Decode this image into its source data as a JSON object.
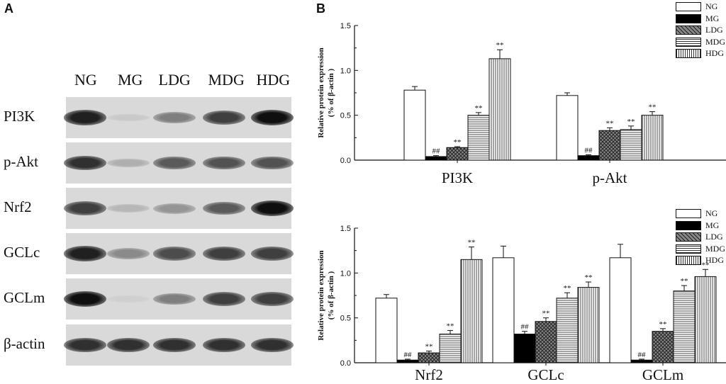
{
  "panel_a": {
    "letter": "A",
    "lanes": [
      "NG",
      "MG",
      "LDG",
      "MDG",
      "HDG"
    ],
    "rows": [
      {
        "label": "PI3K",
        "intensity": [
          0.95,
          0.15,
          0.6,
          0.85,
          1.0
        ]
      },
      {
        "label": "p-Akt",
        "intensity": [
          0.9,
          0.35,
          0.75,
          0.78,
          0.78
        ]
      },
      {
        "label": "Nrf2",
        "intensity": [
          0.85,
          0.3,
          0.5,
          0.75,
          1.0
        ]
      },
      {
        "label": "GCLc",
        "intensity": [
          0.95,
          0.55,
          0.8,
          0.85,
          0.85
        ]
      },
      {
        "label": "GCLm",
        "intensity": [
          1.0,
          0.08,
          0.6,
          0.85,
          0.85
        ]
      },
      {
        "label": "β-actin",
        "intensity": [
          0.9,
          0.9,
          0.9,
          0.9,
          0.9
        ]
      }
    ]
  },
  "panel_b": {
    "letter": "B"
  },
  "colors": {
    "NG": "#ffffff",
    "MG": "#000000",
    "bar_stroke": "#111111"
  },
  "chart_data": [
    {
      "type": "bar",
      "categories": [
        "PI3K",
        "p-Akt"
      ],
      "ylabel": "Relative protein expression (% of β-actin  )",
      "ylim": [
        0,
        1.5
      ],
      "yticks": [
        "0.0",
        "0.5",
        "1.0",
        "1.5"
      ],
      "legend_placement": "top-right",
      "series": [
        {
          "name": "NG",
          "pattern": "white",
          "values": [
            0.78,
            0.72
          ],
          "errors": [
            0.04,
            0.03
          ],
          "labels": [
            "",
            ""
          ]
        },
        {
          "name": "MG",
          "pattern": "black",
          "values": [
            0.04,
            0.05
          ],
          "errors": [
            0.01,
            0.01
          ],
          "labels": [
            "##",
            "##"
          ]
        },
        {
          "name": "LDG",
          "pattern": "crosshatch",
          "values": [
            0.14,
            0.33
          ],
          "errors": [
            0.01,
            0.03
          ],
          "labels": [
            "**",
            "**"
          ]
        },
        {
          "name": "MDG",
          "pattern": "horizontal",
          "values": [
            0.5,
            0.34
          ],
          "errors": [
            0.03,
            0.04
          ],
          "labels": [
            "**",
            "**"
          ]
        },
        {
          "name": "HDG",
          "pattern": "vertical",
          "values": [
            1.13,
            0.5
          ],
          "errors": [
            0.1,
            0.04
          ],
          "labels": [
            "**",
            "**"
          ]
        }
      ]
    },
    {
      "type": "bar",
      "categories": [
        "Nrf2",
        "GCLc",
        "GCLm"
      ],
      "ylabel": "Relative protein expression (% of β-actin  )",
      "ylim": [
        0,
        1.5
      ],
      "yticks": [
        "0.0",
        "0.5",
        "1.0",
        "1.5"
      ],
      "legend_placement": "top-right",
      "series": [
        {
          "name": "NG",
          "pattern": "white",
          "values": [
            0.72,
            1.17,
            1.17
          ],
          "errors": [
            0.04,
            0.13,
            0.15
          ],
          "labels": [
            "",
            "",
            ""
          ]
        },
        {
          "name": "MG",
          "pattern": "black",
          "values": [
            0.03,
            0.32,
            0.03
          ],
          "errors": [
            0.01,
            0.03,
            0.01
          ],
          "labels": [
            "##",
            "##",
            "##"
          ]
        },
        {
          "name": "LDG",
          "pattern": "crosshatch",
          "values": [
            0.11,
            0.46,
            0.35
          ],
          "errors": [
            0.02,
            0.04,
            0.03
          ],
          "labels": [
            "**",
            "**",
            "**"
          ]
        },
        {
          "name": "MDG",
          "pattern": "horizontal",
          "values": [
            0.32,
            0.72,
            0.8
          ],
          "errors": [
            0.04,
            0.06,
            0.06
          ],
          "labels": [
            "**",
            "**",
            "**"
          ]
        },
        {
          "name": "HDG",
          "pattern": "vertical",
          "values": [
            1.15,
            0.84,
            0.96
          ],
          "errors": [
            0.14,
            0.06,
            0.08
          ],
          "labels": [
            "**",
            "**",
            "**"
          ]
        }
      ]
    }
  ]
}
